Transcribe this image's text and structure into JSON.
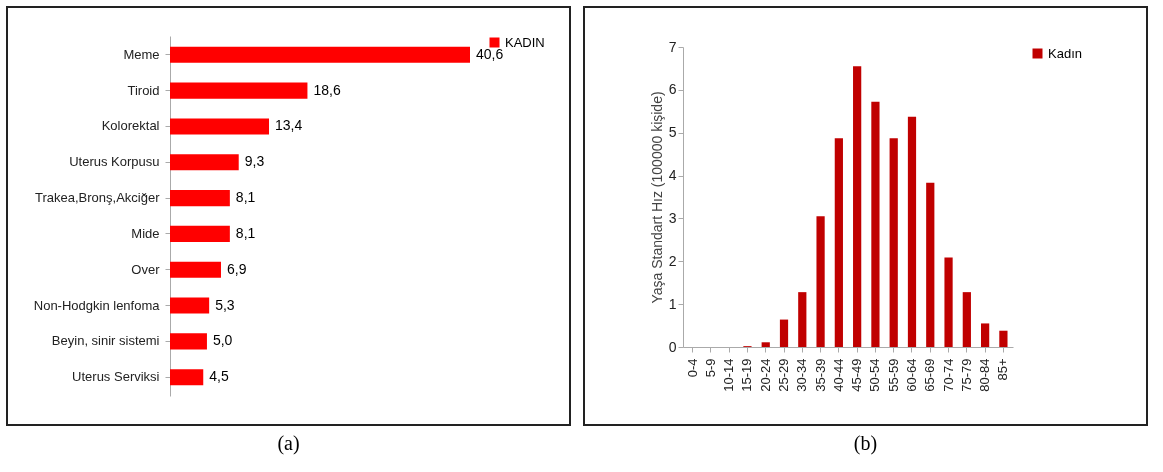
{
  "chart_data": [
    {
      "type": "bar",
      "orientation": "horizontal",
      "categories": [
        "Meme",
        "Tiroid",
        "Kolorektal",
        "Uterus Korpusu",
        "Trakea,Bronş,Akciğer",
        "Mide",
        "Over",
        "Non-Hodgkin lenfoma",
        "Beyin, sinir sistemi",
        "Uterus Serviksi"
      ],
      "series": [
        {
          "name": "KADIN",
          "color": "#ff0000",
          "values": [
            40.6,
            18.6,
            13.4,
            9.3,
            8.1,
            8.1,
            6.9,
            5.3,
            5.0,
            4.5
          ],
          "value_labels": [
            "40,6",
            "18,6",
            "13,4",
            "9,3",
            "8,1",
            "8,1",
            "6,9",
            "5,3",
            "5,0",
            "4,5"
          ]
        }
      ],
      "legend": "right",
      "annotations": [
        "(a)"
      ]
    },
    {
      "type": "bar",
      "categories": [
        "0-4",
        "5-9",
        "10-14",
        "15-19",
        "20-24",
        "25-29",
        "30-34",
        "35-39",
        "40-44",
        "45-49",
        "50-54",
        "55-59",
        "60-64",
        "65-69",
        "70-74",
        "75-79",
        "80-84",
        "85+"
      ],
      "series": [
        {
          "name": "Kadın",
          "color": "#c00000",
          "values": [
            0,
            0,
            0,
            0.02,
            0.11,
            0.64,
            1.28,
            3.05,
            4.87,
            6.55,
            5.72,
            4.87,
            5.37,
            3.83,
            2.09,
            1.28,
            0.55,
            0.38
          ]
        }
      ],
      "ylabel": "Yaşa Standart Hız (100000 kişide)",
      "ylim": [
        0,
        7
      ],
      "yticks": [
        0,
        1,
        2,
        3,
        4,
        5,
        6,
        7
      ],
      "legend": "right",
      "annotations": [
        "(b)"
      ]
    }
  ]
}
